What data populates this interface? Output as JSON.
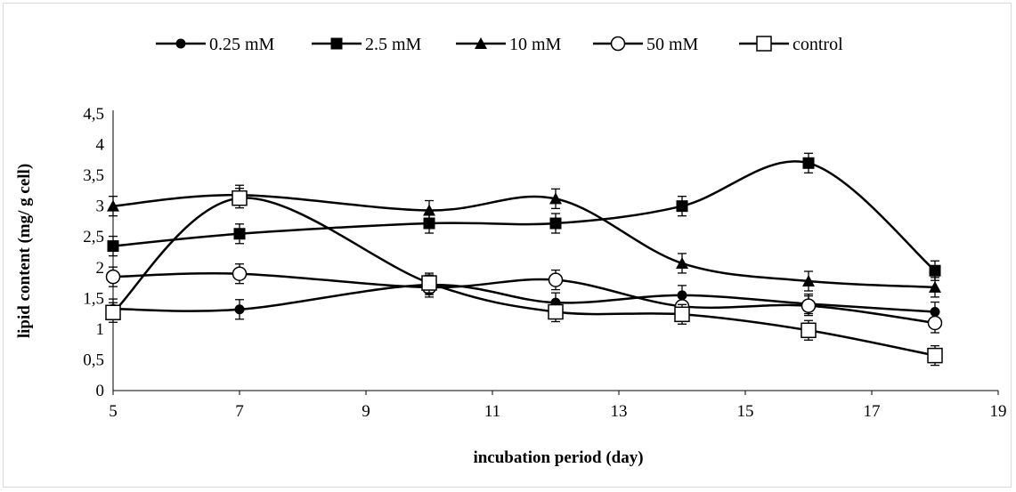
{
  "chart_data": {
    "type": "line",
    "title": "",
    "xlabel": "incubation period (day)",
    "ylabel": "lipid content (mg/ g cell)",
    "xlim": [
      5,
      19
    ],
    "ylim": [
      0,
      4.5
    ],
    "x_ticks": [
      "5",
      "7",
      "9",
      "11",
      "13",
      "15",
      "17",
      "19"
    ],
    "y_ticks": [
      "0",
      "0,5",
      "1",
      "1,5",
      "2",
      "2,5",
      "3",
      "3,5",
      "4",
      "4,5"
    ],
    "grid": false,
    "legend_position": "top",
    "series": [
      {
        "name": "0.25 mM",
        "marker": "filled-circle",
        "x": [
          5,
          7,
          10,
          12,
          14,
          16,
          18
        ],
        "y": [
          1.33,
          1.32,
          1.72,
          1.43,
          1.55,
          1.41,
          1.28
        ]
      },
      {
        "name": "2.5 mM",
        "marker": "filled-square",
        "x": [
          5,
          7,
          10,
          12,
          14,
          16,
          18
        ],
        "y": [
          2.35,
          2.55,
          2.72,
          2.72,
          3.0,
          3.7,
          1.95
        ]
      },
      {
        "name": "10 mM",
        "marker": "filled-triangle",
        "x": [
          5,
          7,
          10,
          12,
          14,
          16,
          18
        ],
        "y": [
          3.0,
          3.18,
          2.93,
          3.12,
          2.07,
          1.78,
          1.68
        ]
      },
      {
        "name": "50 mM",
        "marker": "open-circle",
        "x": [
          5,
          7,
          10,
          12,
          14,
          16,
          18
        ],
        "y": [
          1.85,
          1.9,
          1.68,
          1.8,
          1.37,
          1.38,
          1.1
        ]
      },
      {
        "name": "control",
        "marker": "open-square",
        "x": [
          5,
          7,
          10,
          12,
          14,
          16,
          18
        ],
        "y": [
          1.27,
          3.13,
          1.75,
          1.28,
          1.24,
          0.98,
          0.57
        ]
      }
    ]
  }
}
